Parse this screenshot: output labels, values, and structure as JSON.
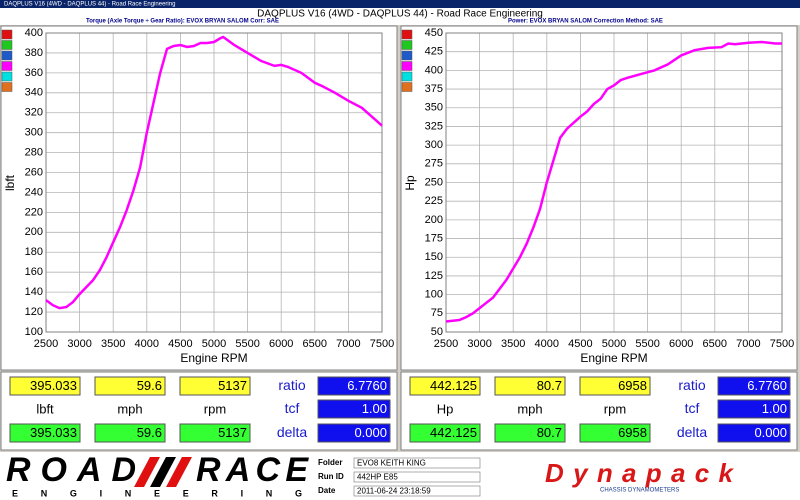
{
  "window_title": "DAQPLUS V16 (4WD - DAQPLUS 44) - Road Race Engineering",
  "header": {
    "title": "DAQPLUS V16 (4WD - DAQPLUS 44) - Road Race Engineering",
    "left_subtitle": "Torque (Axle Torque ÷ Gear Ratio): EVOX BRYAN SALOM     Corr: SAE",
    "right_subtitle": "Power: EVOX BRYAN SALOM     Correction Method: SAE"
  },
  "chart_data": [
    {
      "type": "line",
      "x_label": "Engine RPM",
      "y_label": "lbft",
      "color": "#ff00ff",
      "grid": true,
      "xlim": [
        2500,
        7500
      ],
      "xticks": [
        2500,
        3000,
        3500,
        4000,
        4500,
        5000,
        5500,
        6000,
        6500,
        7000,
        7500
      ],
      "ylim": [
        100,
        400
      ],
      "yticks": [
        100,
        120,
        140,
        160,
        180,
        200,
        220,
        240,
        260,
        280,
        300,
        320,
        340,
        360,
        380,
        400
      ],
      "x": [
        2500,
        2600,
        2700,
        2800,
        2900,
        3000,
        3100,
        3200,
        3300,
        3400,
        3500,
        3600,
        3700,
        3800,
        3900,
        4000,
        4100,
        4200,
        4300,
        4400,
        4500,
        4600,
        4700,
        4800,
        4900,
        5000,
        5100,
        5137,
        5200,
        5300,
        5400,
        5500,
        5700,
        5900,
        6000,
        6100,
        6300,
        6500,
        6600,
        6800,
        7000,
        7200,
        7400,
        7500
      ],
      "values": [
        132,
        127,
        124,
        125,
        130,
        138,
        145,
        152,
        162,
        175,
        190,
        205,
        222,
        242,
        265,
        300,
        330,
        360,
        384,
        387,
        388,
        386,
        387,
        390,
        390,
        391,
        395,
        396,
        393,
        388,
        384,
        380,
        372,
        367,
        368,
        366,
        360,
        350,
        347,
        340,
        332,
        325,
        313,
        307
      ]
    },
    {
      "type": "line",
      "x_label": "Engine RPM",
      "y_label": "Hp",
      "color": "#ff00ff",
      "grid": true,
      "xlim": [
        2500,
        7500
      ],
      "xticks": [
        2500,
        3000,
        3500,
        4000,
        4500,
        5000,
        5500,
        6000,
        6500,
        7000,
        7500
      ],
      "ylim": [
        50,
        450
      ],
      "yticks": [
        50,
        75,
        100,
        125,
        150,
        175,
        200,
        225,
        250,
        275,
        300,
        325,
        350,
        375,
        400,
        425,
        450
      ],
      "x": [
        2500,
        2600,
        2700,
        2800,
        2900,
        3000,
        3100,
        3200,
        3300,
        3400,
        3500,
        3600,
        3700,
        3800,
        3900,
        4000,
        4100,
        4200,
        4300,
        4400,
        4500,
        4600,
        4700,
        4800,
        4900,
        5000,
        5100,
        5200,
        5400,
        5600,
        5800,
        6000,
        6200,
        6400,
        6600,
        6700,
        6800,
        7000,
        7200,
        7400,
        7500
      ],
      "values": [
        64,
        65,
        66,
        70,
        75,
        82,
        89,
        96,
        108,
        120,
        135,
        150,
        168,
        190,
        215,
        250,
        280,
        310,
        322,
        330,
        338,
        345,
        355,
        362,
        375,
        380,
        387,
        390,
        395,
        400,
        408,
        420,
        427,
        430,
        431,
        436,
        435,
        437,
        438,
        436,
        436
      ]
    }
  ],
  "readouts": [
    {
      "top": [
        "395.033",
        "59.6",
        "5137"
      ],
      "units": [
        "lbft",
        "mph",
        "rpm"
      ],
      "bottom": [
        "395.033",
        "59.6",
        "5137"
      ],
      "params": [
        {
          "label": "ratio",
          "value": "6.7760"
        },
        {
          "label": "tcf",
          "value": "1.00"
        },
        {
          "label": "delta",
          "value": "0.000"
        }
      ]
    },
    {
      "top": [
        "442.125",
        "80.7",
        "6958"
      ],
      "units": [
        "Hp",
        "mph",
        "rpm"
      ],
      "bottom": [
        "442.125",
        "80.7",
        "6958"
      ],
      "params": [
        {
          "label": "ratio",
          "value": "6.7760"
        },
        {
          "label": "tcf",
          "value": "1.00"
        },
        {
          "label": "delta",
          "value": "0.000"
        }
      ]
    }
  ],
  "footer": {
    "logo_left": "ROAD",
    "logo_right": "RACE",
    "logo_sub": "E N G I N E E R I N G",
    "fields": [
      {
        "label": "Folder",
        "value": "EVO8 KEITH KING"
      },
      {
        "label": "Run ID",
        "value": "442HP E85"
      },
      {
        "label": "Date",
        "value": "2011-06-24 23:18:59"
      }
    ],
    "brand": "Dynapack",
    "brand_sub": "CHASSIS DYNAMOMETERS"
  }
}
